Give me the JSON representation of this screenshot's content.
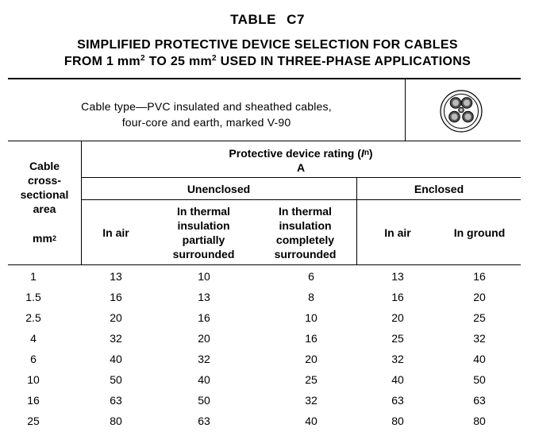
{
  "table": {
    "number": "TABLE C7",
    "title_line1": "SIMPLIFIED PROTECTIVE DEVICE SELECTION FOR CABLES",
    "title_line2_a": "FROM 1 mm",
    "title_line2_sup1": "2",
    "title_line2_b": " TO 25 mm",
    "title_line2_sup2": "2",
    "title_line2_c": " USED IN THREE-PHASE APPLICATIONS"
  },
  "cable": {
    "line1": "Cable type—PVC insulated and sheathed cables,",
    "line2": "four-core and earth, marked V-90",
    "icon": "four-core-earth-cable-icon"
  },
  "headers": {
    "area_line1": "Cable",
    "area_line2": "cross-",
    "area_line3": "sectional",
    "area_line4": "area",
    "area_unit": "mm",
    "area_unit_sup": "2",
    "rating_a": "Protective device rating (",
    "rating_i": "I",
    "rating_sub": "n",
    "rating_b": ")",
    "rating_unit": "A",
    "unenclosed": "Unenclosed",
    "enclosed": "Enclosed",
    "in_air": "In air",
    "partial_l1": "In thermal",
    "partial_l2": "insulation",
    "partial_l3": "partially",
    "partial_l4": "surrounded",
    "complete_l1": "In thermal",
    "complete_l2": "insulation",
    "complete_l3": "completely",
    "complete_l4": "surrounded",
    "enc_in_air": "In air",
    "enc_in_ground": "In ground"
  },
  "rows": [
    [
      "1",
      "13",
      "10",
      "6",
      "13",
      "16"
    ],
    [
      "1.5",
      "16",
      "13",
      "8",
      "16",
      "20"
    ],
    [
      "2.5",
      "20",
      "16",
      "10",
      "20",
      "25"
    ],
    [
      "4",
      "32",
      "20",
      "16",
      "25",
      "32"
    ],
    [
      "6",
      "40",
      "32",
      "20",
      "32",
      "40"
    ],
    [
      "10",
      "50",
      "40",
      "25",
      "40",
      "50"
    ],
    [
      "16",
      "63",
      "50",
      "32",
      "63",
      "63"
    ],
    [
      "25",
      "80",
      "63",
      "40",
      "80",
      "80"
    ]
  ]
}
